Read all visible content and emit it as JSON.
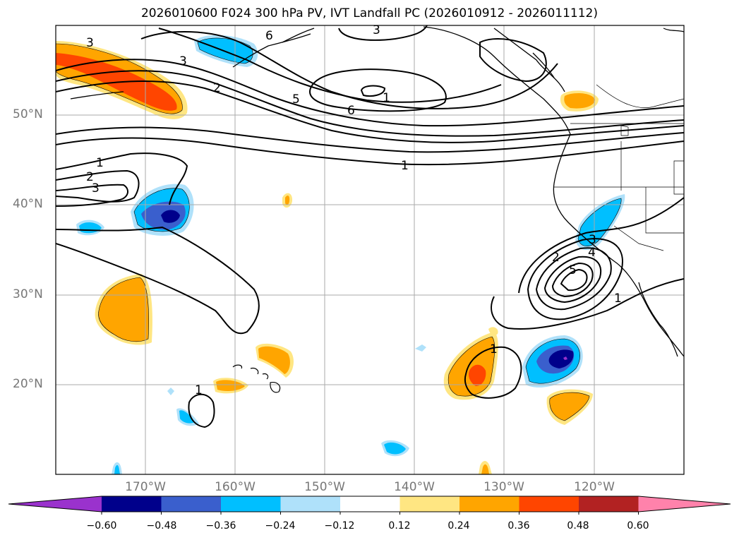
{
  "title": "2026010600 F024 300 hPa PV, IVT Landfall PC (2026010912 - 2026011112)",
  "map": {
    "lon_labels": [
      "170°W",
      "160°W",
      "150°W",
      "140°W",
      "130°W",
      "120°W"
    ],
    "lat_labels": [
      "50°N",
      "40°N",
      "30°N",
      "20°N"
    ],
    "contour_labels": [
      {
        "id": "c3a",
        "text": "3"
      },
      {
        "id": "c6a",
        "text": "6"
      },
      {
        "id": "c3b",
        "text": "3"
      },
      {
        "id": "c3c",
        "text": "3"
      },
      {
        "id": "c2a",
        "text": "2"
      },
      {
        "id": "c5a",
        "text": "5"
      },
      {
        "id": "c6b",
        "text": "6"
      },
      {
        "id": "c1a",
        "text": "1"
      },
      {
        "id": "c1b",
        "text": "1"
      },
      {
        "id": "c1c",
        "text": "1"
      },
      {
        "id": "c2b",
        "text": "2"
      },
      {
        "id": "c3d",
        "text": "3"
      },
      {
        "id": "c2c",
        "text": "2"
      },
      {
        "id": "c3e",
        "text": "3"
      },
      {
        "id": "c4a",
        "text": "4"
      },
      {
        "id": "c5b",
        "text": "5"
      },
      {
        "id": "c1d",
        "text": "1"
      },
      {
        "id": "c1e",
        "text": "1"
      },
      {
        "id": "c1f",
        "text": "1"
      }
    ]
  },
  "colorbar": {
    "colors": [
      "#9a32cd",
      "#00008b",
      "#3a5fcd",
      "#00bfff",
      "#afe1fa",
      "#ffffff",
      "#ffe682",
      "#ffa500",
      "#ff4500",
      "#b22222",
      "#ff82ab"
    ],
    "ticks": [
      "−0.60",
      "−0.48",
      "−0.36",
      "−0.24",
      "−0.12",
      "0.12",
      "0.24",
      "0.36",
      "0.48",
      "0.60"
    ]
  }
}
